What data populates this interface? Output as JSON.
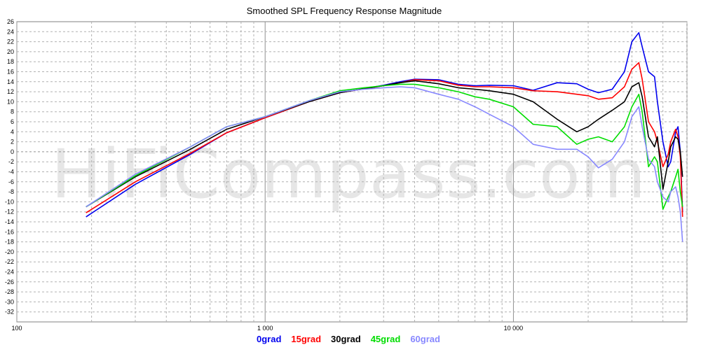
{
  "chart_data": {
    "type": "line",
    "title": "Smoothed SPL Frequency Response Magnitude",
    "watermark": "HiFiCompass.com",
    "x_scale": "log",
    "xlim": [
      100,
      50000
    ],
    "ylim": [
      -34,
      26
    ],
    "y_step": 2,
    "grid": true,
    "x_tick_labels": [
      {
        "value": 100,
        "label": "100"
      },
      {
        "value": 1000,
        "label": "1 000"
      },
      {
        "value": 10000,
        "label": "10 000"
      }
    ],
    "legend_position": "bottom-center",
    "colors": {
      "0grad": "#0000ee",
      "15grad": "#ff0000",
      "30grad": "#000000",
      "45grad": "#00dd00",
      "60grad": "#8888ff",
      "grid": "#b0b0b0",
      "frame": "#808080"
    },
    "series": [
      {
        "name": "0grad",
        "color": "#0000ee",
        "x": [
          190,
          300,
          500,
          700,
          1000,
          1500,
          2000,
          2500,
          3000,
          3500,
          4000,
          5000,
          6000,
          7000,
          8000,
          10000,
          12000,
          15000,
          18000,
          20000,
          22000,
          25000,
          28000,
          30000,
          32000,
          33000,
          35000,
          37000,
          38000,
          40000,
          42000,
          43000,
          45000,
          46000,
          47000,
          48000
        ],
        "y": [
          -13,
          -6.5,
          -0.5,
          3.8,
          6.8,
          10,
          11.8,
          12.6,
          13.3,
          14,
          14.5,
          14.4,
          13.5,
          13.2,
          13.3,
          13.2,
          12.3,
          13.8,
          13.6,
          12.5,
          11.8,
          12.5,
          16,
          22,
          23.8,
          21,
          16,
          15,
          10,
          2,
          -3,
          -2,
          4,
          5,
          0,
          -12
        ]
      },
      {
        "name": "15grad",
        "color": "#ff0000",
        "x": [
          190,
          300,
          500,
          700,
          1000,
          1500,
          2000,
          2500,
          3000,
          3500,
          4000,
          5000,
          6000,
          7000,
          8000,
          10000,
          12000,
          15000,
          18000,
          20000,
          22000,
          25000,
          28000,
          30000,
          32000,
          33000,
          35000,
          37000,
          38000,
          40000,
          42000,
          43000,
          45000,
          46000,
          47000,
          48000
        ],
        "y": [
          -12.2,
          -6,
          -0.3,
          3.8,
          6.8,
          10,
          11.8,
          12.6,
          13.2,
          13.8,
          14.4,
          14.2,
          13.3,
          13,
          13,
          12.8,
          12.2,
          12,
          11.5,
          11.2,
          10.5,
          10.8,
          13,
          16.5,
          17.8,
          14.5,
          6,
          4,
          2,
          -3,
          -0.5,
          2,
          4.5,
          3,
          -1,
          -13
        ]
      },
      {
        "name": "30grad",
        "color": "#000000",
        "x": [
          190,
          300,
          500,
          700,
          1000,
          1500,
          2000,
          2500,
          3000,
          3500,
          4000,
          5000,
          6000,
          7000,
          8000,
          10000,
          12000,
          15000,
          18000,
          20000,
          22000,
          25000,
          28000,
          30000,
          32000,
          33000,
          35000,
          37000,
          38000,
          40000,
          42000,
          43000,
          45000,
          46000,
          47000,
          48000
        ],
        "y": [
          -11,
          -5,
          0.5,
          4.5,
          7,
          10,
          11.8,
          12.6,
          13.2,
          13.8,
          14.2,
          13.6,
          12.8,
          12.5,
          12.2,
          11.5,
          10,
          6.5,
          4,
          5,
          6.5,
          8.3,
          10,
          13,
          13.8,
          11,
          3,
          1,
          3,
          -7.5,
          -2,
          1,
          3,
          2.5,
          0,
          -5
        ]
      },
      {
        "name": "45grad",
        "color": "#00dd00",
        "x": [
          190,
          300,
          500,
          700,
          1000,
          1500,
          2000,
          2500,
          3000,
          3500,
          4000,
          5000,
          6000,
          7000,
          8000,
          10000,
          12000,
          15000,
          18000,
          20000,
          22000,
          25000,
          28000,
          30000,
          32000,
          33000,
          35000,
          37000,
          38000,
          40000,
          42000,
          43000,
          45000,
          46000,
          47000,
          48000
        ],
        "y": [
          -11,
          -4.8,
          1,
          5,
          7,
          10.2,
          12.2,
          12.8,
          13.2,
          13.5,
          13.5,
          12.8,
          12,
          11,
          10.5,
          9,
          5.5,
          5,
          1.5,
          2.5,
          3,
          2,
          5,
          9,
          11.5,
          8,
          -3,
          -1,
          -2,
          -11.5,
          -9,
          -8,
          -5,
          -3.5,
          -8,
          -11
        ]
      },
      {
        "name": "60grad",
        "color": "#8888ff",
        "x": [
          190,
          300,
          500,
          700,
          1000,
          1500,
          2000,
          2500,
          3000,
          3500,
          4000,
          5000,
          6000,
          7000,
          8000,
          10000,
          12000,
          15000,
          18000,
          20000,
          22000,
          25000,
          28000,
          30000,
          32000,
          33000,
          35000,
          37000,
          38000,
          40000,
          42000,
          43000,
          45000,
          46000,
          47000,
          48000
        ],
        "y": [
          -11,
          -4.5,
          1,
          5,
          7,
          10.2,
          12,
          12.5,
          12.8,
          13,
          12.8,
          11.5,
          10.5,
          9,
          7.5,
          5,
          1.5,
          0.5,
          0.5,
          -1,
          -3.2,
          -1.5,
          2,
          7,
          9,
          5,
          -1.5,
          -3,
          -6,
          -9,
          -10,
          -8,
          -7,
          -9,
          -12,
          -18
        ]
      }
    ]
  }
}
